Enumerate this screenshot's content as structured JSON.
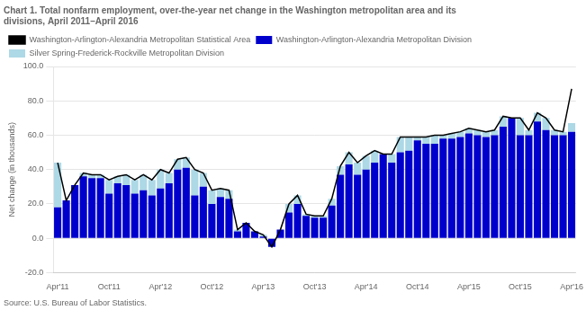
{
  "chart_data": {
    "type": "bar",
    "stacked": true,
    "title": [
      "Chart 1. Total nonfarm employment, over-the-year net change in the Washington metropolitan area and its",
      "divisions, April 2011–April 2016"
    ],
    "ylabel": "Net change (in thousands)",
    "annotations": [
      "Source: U.S. Bureau of Labor Statistics."
    ],
    "categories": [
      "Apr'11",
      null,
      null,
      null,
      null,
      null,
      "Oct'11",
      null,
      null,
      null,
      null,
      null,
      "Apr'12",
      null,
      null,
      null,
      null,
      null,
      "Oct'12",
      null,
      null,
      null,
      null,
      null,
      "Apr'13",
      null,
      null,
      null,
      null,
      null,
      "Oct'13",
      null,
      null,
      null,
      null,
      null,
      "Apr'14",
      null,
      null,
      null,
      null,
      null,
      "Oct'14",
      null,
      null,
      null,
      null,
      null,
      "Apr'15",
      null,
      null,
      null,
      null,
      null,
      "Oct'15",
      null,
      null,
      null,
      null,
      null,
      "Apr'16"
    ],
    "series": [
      {
        "name": "Washington-Arlington-Alexandria Metropolitan Division",
        "color": "#0000CD",
        "values": [
          18.0,
          22.0,
          31.0,
          36.0,
          35.0,
          35.0,
          26.0,
          32.0,
          31.0,
          26.0,
          28.0,
          25.0,
          29.0,
          32.0,
          40.0,
          41.0,
          25.0,
          30.0,
          20.0,
          24.0,
          23.0,
          4.0,
          9.0,
          4.0,
          1.0,
          -5.0,
          5.0,
          15.0,
          20.0,
          13.0,
          12.0,
          12.0,
          19.0,
          37.0,
          43.0,
          37.0,
          40.0,
          44.0,
          49.0,
          44.0,
          50.0,
          51.0,
          57.0,
          55.0,
          55.0,
          58.0,
          58.0,
          59.0,
          61.0,
          60.0,
          59.0,
          60.0,
          65.0,
          70.0,
          60.0,
          60.0,
          68.0,
          63.0,
          60.0,
          60.0,
          62.0
        ]
      },
      {
        "name": "Silver Spring-Frederick-Rockville Metropolitan Division",
        "color": "#ADD8E6",
        "values": [
          26.0,
          0.0,
          0.0,
          2.0,
          2.0,
          2.0,
          8.0,
          4.0,
          6.0,
          8.0,
          9.0,
          9.0,
          11.0,
          6.0,
          6.0,
          6.0,
          15.0,
          8.0,
          8.0,
          5.0,
          5.0,
          1.0,
          0.0,
          0.0,
          1.0,
          0.0,
          0.0,
          5.0,
          5.0,
          1.0,
          1.0,
          1.0,
          4.0,
          5.0,
          7.0,
          7.0,
          8.0,
          7.0,
          0.0,
          5.0,
          9.0,
          8.0,
          2.0,
          4.0,
          5.0,
          2.0,
          3.0,
          3.0,
          3.0,
          3.0,
          3.0,
          3.0,
          6.0,
          0.0,
          10.0,
          3.0,
          5.0,
          7.0,
          3.0,
          2.0,
          5.0
        ]
      },
      {
        "name": "Washington-Arlington-Alexandria Metropolitan Statistical Area",
        "type": "line",
        "color": "#000000",
        "values": [
          44.0,
          22.0,
          31.0,
          38.0,
          37.0,
          37.0,
          34.0,
          36.0,
          37.0,
          34.0,
          37.0,
          34.0,
          40.0,
          38.0,
          46.0,
          47.0,
          40.0,
          38.0,
          28.0,
          29.0,
          28.0,
          5.0,
          9.0,
          4.0,
          2.0,
          -5.0,
          5.0,
          20.0,
          25.0,
          14.0,
          13.0,
          13.0,
          23.0,
          42.0,
          50.0,
          44.0,
          48.0,
          51.0,
          49.0,
          49.0,
          59.0,
          59.0,
          59.0,
          59.0,
          60.0,
          60.0,
          61.0,
          62.0,
          64.0,
          63.0,
          62.0,
          63.0,
          71.0,
          70.0,
          70.0,
          63.0,
          73.0,
          70.0,
          63.0,
          62.0,
          87.0
        ]
      }
    ],
    "ylim": [
      -20.0,
      100.0
    ],
    "yticks": [
      {
        "value": -20.0,
        "label": "-20.0"
      },
      {
        "value": 0.0,
        "label": "0.0"
      },
      {
        "value": 20.0,
        "label": "20.0"
      },
      {
        "value": 40.0,
        "label": "40.0"
      },
      {
        "value": 60.0,
        "label": "60.0"
      },
      {
        "value": 80.0,
        "label": "80.0"
      },
      {
        "value": 100.0,
        "label": "100.0"
      }
    ],
    "grid": true,
    "legend": "top"
  }
}
